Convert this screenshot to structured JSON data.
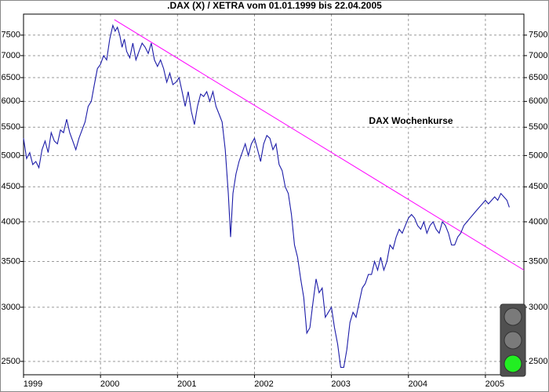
{
  "chart_data": {
    "type": "line",
    "title": ".DAX (X) / XETRA vom 01.01.1999 bis 22.04.2005",
    "annotation": "DAX Wochenkurse",
    "log_scale": true,
    "grid": true,
    "x": [
      1999.0,
      1999.04,
      1999.08,
      1999.12,
      1999.16,
      1999.2,
      1999.24,
      1999.28,
      1999.32,
      1999.36,
      1999.4,
      1999.44,
      1999.48,
      1999.52,
      1999.56,
      1999.6,
      1999.64,
      1999.68,
      1999.72,
      1999.76,
      1999.8,
      1999.84,
      1999.88,
      1999.92,
      1999.96,
      2000.0,
      2000.04,
      2000.08,
      2000.12,
      2000.16,
      2000.19,
      2000.22,
      2000.25,
      2000.28,
      2000.31,
      2000.34,
      2000.38,
      2000.42,
      2000.46,
      2000.5,
      2000.54,
      2000.58,
      2000.62,
      2000.66,
      2000.7,
      2000.74,
      2000.78,
      2000.82,
      2000.86,
      2000.9,
      2000.94,
      2000.98,
      2001.02,
      2001.06,
      2001.1,
      2001.14,
      2001.18,
      2001.22,
      2001.26,
      2001.3,
      2001.34,
      2001.38,
      2001.42,
      2001.46,
      2001.5,
      2001.54,
      2001.58,
      2001.62,
      2001.66,
      2001.69,
      2001.72,
      2001.76,
      2001.8,
      2001.84,
      2001.88,
      2001.92,
      2001.96,
      2002.0,
      2002.04,
      2002.08,
      2002.12,
      2002.16,
      2002.2,
      2002.24,
      2002.28,
      2002.32,
      2002.36,
      2002.4,
      2002.44,
      2002.48,
      2002.52,
      2002.56,
      2002.6,
      2002.64,
      2002.68,
      2002.72,
      2002.76,
      2002.8,
      2002.84,
      2002.88,
      2002.92,
      2002.96,
      2003.0,
      2003.04,
      2003.08,
      2003.12,
      2003.16,
      2003.2,
      2003.24,
      2003.28,
      2003.32,
      2003.36,
      2003.4,
      2003.44,
      2003.48,
      2003.52,
      2003.56,
      2003.6,
      2003.64,
      2003.68,
      2003.72,
      2003.76,
      2003.8,
      2003.84,
      2003.88,
      2003.92,
      2003.96,
      2004.0,
      2004.04,
      2004.08,
      2004.12,
      2004.16,
      2004.2,
      2004.24,
      2004.28,
      2004.32,
      2004.36,
      2004.4,
      2004.44,
      2004.48,
      2004.52,
      2004.56,
      2004.6,
      2004.64,
      2004.68,
      2004.72,
      2004.76,
      2004.8,
      2004.84,
      2004.88,
      2004.92,
      2004.96,
      2005.0,
      2005.04,
      2005.08,
      2005.12,
      2005.16,
      2005.2,
      2005.24,
      2005.28,
      2005.31
    ],
    "series": [
      {
        "color": "#1c1ca8",
        "values": [
          5300,
          4950,
          5050,
          4850,
          4900,
          4800,
          5100,
          5250,
          5050,
          5400,
          5250,
          5200,
          5450,
          5400,
          5650,
          5400,
          5250,
          5100,
          5300,
          5450,
          5600,
          5900,
          6000,
          6350,
          6700,
          6800,
          7000,
          6900,
          7400,
          7750,
          7600,
          7700,
          7500,
          7200,
          7400,
          7100,
          6950,
          7300,
          6900,
          7100,
          7300,
          7200,
          7050,
          7300,
          6900,
          6750,
          6900,
          6700,
          6400,
          6600,
          6350,
          6400,
          6500,
          6200,
          5900,
          6200,
          5800,
          5550,
          5900,
          6150,
          6100,
          6200,
          6000,
          6200,
          5900,
          5750,
          5600,
          5100,
          4400,
          3800,
          4400,
          4700,
          4900,
          5050,
          5200,
          5000,
          5200,
          5300,
          5100,
          4900,
          5200,
          5350,
          5300,
          5100,
          5200,
          4850,
          4750,
          4500,
          4400,
          4100,
          3700,
          3550,
          3300,
          3100,
          2750,
          2800,
          3050,
          3300,
          3150,
          3200,
          2900,
          2950,
          3000,
          2800,
          2650,
          2450,
          2450,
          2600,
          2850,
          2950,
          2900,
          3050,
          3200,
          3250,
          3350,
          3350,
          3500,
          3400,
          3550,
          3400,
          3500,
          3700,
          3650,
          3800,
          3900,
          3850,
          3950,
          4050,
          4100,
          4050,
          3950,
          3900,
          4000,
          3850,
          3950,
          4000,
          3900,
          3850,
          4000,
          3950,
          3850,
          3700,
          3700,
          3800,
          3850,
          3950,
          4000,
          4050,
          4100,
          4150,
          4200,
          4250,
          4300,
          4250,
          4300,
          4350,
          4300,
          4400,
          4350,
          4300,
          4200
        ]
      }
    ],
    "trend_line": {
      "color": "#ff00ff",
      "x": [
        2000.18,
        2005.5
      ],
      "values": [
        7900,
        3400
      ]
    },
    "xlim": [
      1999,
      2005.5
    ],
    "xticks": [
      1999,
      2000,
      2001,
      2002,
      2003,
      2004,
      2005
    ],
    "ylim": [
      2390,
      8050
    ],
    "yticks": [
      2500,
      3000,
      3500,
      4000,
      4500,
      5000,
      5500,
      6000,
      6500,
      7000,
      7500
    ]
  }
}
